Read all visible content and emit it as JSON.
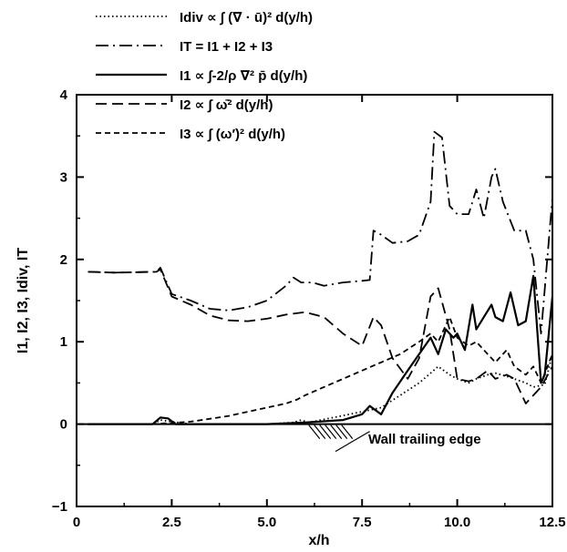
{
  "chart_data": {
    "type": "line",
    "title": "",
    "xlabel": "x/h",
    "ylabel": "I1, I2, I3, Idiv, IT",
    "xlim": [
      0,
      12.5
    ],
    "ylim": [
      -1,
      4
    ],
    "xticks": [
      0,
      2.5,
      5.0,
      7.5,
      10.0,
      12.5
    ],
    "xtick_labels": [
      "0",
      "2.5",
      "5.0",
      "7.5",
      "10.0",
      "12.5"
    ],
    "yticks": [
      -1,
      0,
      1,
      2,
      3,
      4
    ],
    "ytick_labels": [
      "−1",
      "0",
      "1",
      "2",
      "3",
      "4"
    ],
    "grid": false,
    "legend_position": "top",
    "annotation": "Wall trailing edge",
    "series": [
      {
        "name": "Idiv ∝ ∫ (∇ · ū)² d(y/h)",
        "style": "dotted",
        "x": [
          0.3,
          2.0,
          2.2,
          2.5,
          3.0,
          5.0,
          5.7,
          5.9,
          6.1,
          7.5,
          8.0,
          8.5,
          9.0,
          9.3,
          9.5,
          9.8,
          10.0,
          10.3,
          10.5,
          10.8,
          11.0,
          11.3,
          11.5,
          11.8,
          12.0,
          12.3,
          12.5
        ],
        "y": [
          0,
          0,
          0.05,
          0.03,
          0,
          0,
          0.02,
          0.05,
          0.02,
          0.15,
          0.2,
          0.35,
          0.5,
          0.62,
          0.7,
          0.6,
          0.55,
          0.5,
          0.55,
          0.6,
          0.62,
          0.58,
          0.55,
          0.5,
          0.45,
          0.48,
          0.85
        ]
      },
      {
        "name": "IT = I1 + I2 + I3",
        "style": "dash-dot",
        "x": [
          0.3,
          1.0,
          2.1,
          2.2,
          2.5,
          3.0,
          3.5,
          4.0,
          4.5,
          5.0,
          5.5,
          5.7,
          5.9,
          6.2,
          6.5,
          7.0,
          7.5,
          7.7,
          7.8,
          8.0,
          8.3,
          8.7,
          9.0,
          9.3,
          9.4,
          9.6,
          9.8,
          10.0,
          10.3,
          10.5,
          10.7,
          10.9,
          11.0,
          11.2,
          11.5,
          11.8,
          12.0,
          12.2,
          12.5
        ],
        "y": [
          1.85,
          1.84,
          1.85,
          1.9,
          1.58,
          1.5,
          1.4,
          1.38,
          1.42,
          1.5,
          1.68,
          1.78,
          1.72,
          1.72,
          1.68,
          1.72,
          1.74,
          1.75,
          2.35,
          2.3,
          2.2,
          2.22,
          2.3,
          2.7,
          3.55,
          3.48,
          2.65,
          2.55,
          2.55,
          2.85,
          2.5,
          3.0,
          3.1,
          2.7,
          2.35,
          2.35,
          2.0,
          1.1,
          2.75
        ]
      },
      {
        "name": "I1 ∝ ∫-2/ρ ∇² p̄ d(y/h)",
        "style": "solid",
        "x": [
          0.3,
          2.0,
          2.2,
          2.4,
          2.6,
          3.0,
          5.0,
          6.0,
          7.0,
          7.5,
          7.7,
          8.0,
          8.3,
          8.7,
          9.0,
          9.3,
          9.5,
          9.7,
          9.9,
          10.0,
          10.2,
          10.4,
          10.5,
          10.7,
          10.9,
          11.0,
          11.2,
          11.4,
          11.6,
          11.8,
          12.0,
          12.2,
          12.3,
          12.5
        ],
        "y": [
          0,
          0,
          0.08,
          0.07,
          0,
          0,
          0,
          0.02,
          0.05,
          0.12,
          0.22,
          0.12,
          0.38,
          0.65,
          0.85,
          1.05,
          0.85,
          1.15,
          1.05,
          1.1,
          0.9,
          1.45,
          1.15,
          1.3,
          1.45,
          1.3,
          1.25,
          1.6,
          1.2,
          1.25,
          1.8,
          0.5,
          0.6,
          1.55
        ]
      },
      {
        "name": "I2 ∝ ∫ ω̄² d(y/h)",
        "style": "dashed",
        "x": [
          0.3,
          1.0,
          2.1,
          2.2,
          2.5,
          3.0,
          3.5,
          4.0,
          4.5,
          5.0,
          5.5,
          6.0,
          6.5,
          7.0,
          7.5,
          7.8,
          8.0,
          8.3,
          8.7,
          9.0,
          9.3,
          9.5,
          9.8,
          10.0,
          10.3,
          10.5,
          10.8,
          11.0,
          11.3,
          11.5,
          11.8,
          12.0,
          12.2,
          12.5
        ],
        "y": [
          1.85,
          1.84,
          1.85,
          1.88,
          1.55,
          1.45,
          1.32,
          1.26,
          1.25,
          1.28,
          1.33,
          1.36,
          1.3,
          1.1,
          0.95,
          1.3,
          1.2,
          0.8,
          0.55,
          0.8,
          1.55,
          1.65,
          1.15,
          0.55,
          0.52,
          0.55,
          0.65,
          0.55,
          0.6,
          0.55,
          0.25,
          0.35,
          0.45,
          0.7
        ]
      },
      {
        "name": "I3 ∝ ∫ (ω′)² d(y/h)",
        "style": "short-dash",
        "x": [
          0.3,
          2.0,
          3.0,
          4.0,
          5.0,
          5.5,
          5.8,
          6.0,
          6.5,
          7.0,
          7.5,
          8.0,
          8.5,
          9.0,
          9.3,
          9.5,
          9.8,
          10.0,
          10.3,
          10.5,
          10.8,
          11.0,
          11.3,
          11.5,
          11.8,
          12.0,
          12.2,
          12.5
        ],
        "y": [
          0,
          0,
          0.03,
          0.1,
          0.2,
          0.25,
          0.3,
          0.35,
          0.45,
          0.55,
          0.65,
          0.75,
          0.85,
          1.0,
          1.1,
          1.0,
          1.3,
          1.05,
          0.95,
          1.0,
          0.85,
          0.75,
          0.9,
          0.7,
          0.6,
          0.7,
          0.5,
          0.85
        ]
      }
    ]
  }
}
